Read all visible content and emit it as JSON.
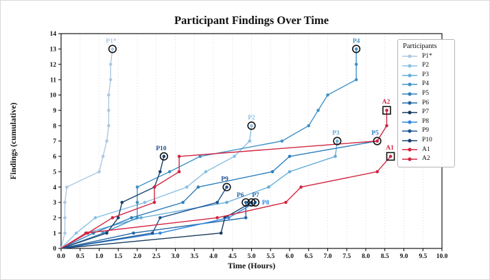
{
  "figure": {
    "title": "Participant Findings Over Time"
  },
  "axes": {
    "x_label": "Time (Hours)",
    "y_label": "Findings (cumulative)",
    "x_tick_labels": [
      "0.0",
      "0.5",
      "1.0",
      "1.5",
      "2.0",
      "2.5",
      "3.0",
      "3.5",
      "4.0",
      "4.5",
      "5.0",
      "5.5",
      "6.0",
      "6.5",
      "7.0",
      "7.5",
      "8.0",
      "8.5",
      "9.0",
      "9.5",
      "10.0"
    ],
    "y_tick_labels": [
      "0",
      "1",
      "2",
      "3",
      "4",
      "5",
      "6",
      "7",
      "8",
      "9",
      "10",
      "11",
      "12",
      "13",
      "14"
    ]
  },
  "legend": {
    "title": "Participants",
    "entries": [
      "P1*",
      "P2",
      "P3",
      "P4",
      "P5",
      "P6",
      "P7",
      "P8",
      "P9",
      "P10",
      "A1",
      "A2"
    ]
  },
  "chart_data": {
    "type": "line",
    "title": "Participant Findings Over Time",
    "xlabel": "Time (Hours)",
    "ylabel": "Findings (cumulative)",
    "xlim": [
      0,
      10
    ],
    "ylim": [
      0,
      14
    ],
    "x_tick_step": 0.5,
    "y_tick_step": 1,
    "grid": "vertical-dotted",
    "legend_position": "upper-right",
    "series": [
      {
        "name": "P1*",
        "color": "#aec7e0",
        "end_marker": "circle",
        "label_dx": -2,
        "label_dy": -9,
        "points": [
          [
            0,
            0
          ],
          [
            0.1,
            1
          ],
          [
            0.1,
            2
          ],
          [
            0.1,
            3
          ],
          [
            0.15,
            4
          ],
          [
            1.0,
            5
          ],
          [
            1.1,
            6
          ],
          [
            1.2,
            7
          ],
          [
            1.25,
            8
          ],
          [
            1.25,
            9
          ],
          [
            1.25,
            10
          ],
          [
            1.3,
            11
          ],
          [
            1.3,
            12
          ],
          [
            1.35,
            13
          ]
        ]
      },
      {
        "name": "P2",
        "color": "#8bc0e4",
        "end_marker": "circle",
        "label_dx": 0,
        "label_dy": -9,
        "points": [
          [
            0,
            0
          ],
          [
            0.4,
            1
          ],
          [
            0.9,
            2
          ],
          [
            2.2,
            3
          ],
          [
            3.3,
            4
          ],
          [
            3.8,
            5
          ],
          [
            4.55,
            6
          ],
          [
            4.95,
            7
          ],
          [
            5.0,
            8
          ]
        ]
      },
      {
        "name": "P3",
        "color": "#64aed8",
        "end_marker": "circle",
        "label_dx": -2,
        "label_dy": -9,
        "points": [
          [
            0,
            0
          ],
          [
            0.65,
            1
          ],
          [
            2.1,
            2
          ],
          [
            4.35,
            3
          ],
          [
            5.45,
            4
          ],
          [
            6.0,
            5
          ],
          [
            7.2,
            6
          ],
          [
            7.25,
            7
          ]
        ]
      },
      {
        "name": "P4",
        "color": "#4292c6",
        "end_marker": "circle",
        "label_dx": 0,
        "label_dy": -9,
        "points": [
          [
            0,
            0
          ],
          [
            1.1,
            1
          ],
          [
            2.0,
            2
          ],
          [
            2.0,
            3
          ],
          [
            2.0,
            4
          ],
          [
            2.85,
            5
          ],
          [
            3.65,
            6
          ],
          [
            5.8,
            7
          ],
          [
            6.5,
            8
          ],
          [
            6.75,
            9
          ],
          [
            7.0,
            10
          ],
          [
            7.75,
            11
          ],
          [
            7.75,
            12
          ],
          [
            7.75,
            13
          ]
        ]
      },
      {
        "name": "P5",
        "color": "#2e7ebc",
        "end_marker": "circle",
        "label_dx": -3,
        "label_dy": -9,
        "points": [
          [
            0,
            0
          ],
          [
            0.85,
            1
          ],
          [
            1.85,
            2
          ],
          [
            3.2,
            3
          ],
          [
            3.6,
            4
          ],
          [
            5.55,
            5
          ],
          [
            6.0,
            6
          ],
          [
            8.3,
            7
          ]
        ]
      },
      {
        "name": "P6",
        "color": "#2166a5",
        "end_marker": "circle",
        "label_dx": -8,
        "label_dy": -8,
        "points": [
          [
            0,
            0
          ],
          [
            1.9,
            1
          ],
          [
            4.85,
            2
          ],
          [
            4.85,
            3
          ]
        ]
      },
      {
        "name": "P7",
        "color": "#173a5e",
        "end_marker": "circle",
        "label_dx": 6,
        "label_dy": -8,
        "label_color": "#2166a5",
        "points": [
          [
            0,
            0
          ],
          [
            4.2,
            1
          ],
          [
            4.3,
            2
          ],
          [
            5.0,
            3
          ]
        ]
      },
      {
        "name": "P8",
        "color": "#2e86e0",
        "end_marker": "circle",
        "label_dx": 15,
        "label_dy": 3,
        "points": [
          [
            0,
            0
          ],
          [
            2.6,
            1
          ],
          [
            4.4,
            2
          ],
          [
            5.1,
            3
          ]
        ]
      },
      {
        "name": "P9",
        "color": "#1d5290",
        "end_marker": "circle",
        "label_dx": -3,
        "label_dy": -9,
        "points": [
          [
            0,
            0
          ],
          [
            2.4,
            1
          ],
          [
            2.6,
            2
          ],
          [
            4.1,
            3
          ],
          [
            4.35,
            4
          ]
        ]
      },
      {
        "name": "P10",
        "color": "#16406f",
        "end_marker": "circle",
        "label_dx": -4,
        "label_dy": -9,
        "label_color": "#1d5290",
        "points": [
          [
            0,
            0
          ],
          [
            1.2,
            1
          ],
          [
            1.5,
            2
          ],
          [
            1.6,
            3
          ],
          [
            2.45,
            4
          ],
          [
            2.6,
            5
          ],
          [
            2.7,
            6
          ]
        ]
      },
      {
        "name": "A1",
        "color": "#d02440",
        "end_marker": "square",
        "label_dx": -1,
        "label_dy": -10,
        "points": [
          [
            0,
            0
          ],
          [
            0.65,
            1
          ],
          [
            4.1,
            2
          ],
          [
            5.9,
            3
          ],
          [
            6.3,
            4
          ],
          [
            8.3,
            5
          ],
          [
            8.65,
            6
          ]
        ]
      },
      {
        "name": "A2",
        "color": "#d02440",
        "end_marker": "square",
        "label_dx": -1,
        "label_dy": -10,
        "points": [
          [
            0,
            0
          ],
          [
            0.7,
            1
          ],
          [
            1.35,
            2
          ],
          [
            2.45,
            3
          ],
          [
            2.45,
            4
          ],
          [
            3.1,
            5
          ],
          [
            3.1,
            6
          ],
          [
            8.3,
            7
          ],
          [
            8.55,
            8
          ],
          [
            8.55,
            9
          ]
        ]
      }
    ]
  },
  "layout_colors": {
    "grid": "#cfcfcf",
    "spine": "#000000",
    "annotation_ring": "#111111"
  }
}
